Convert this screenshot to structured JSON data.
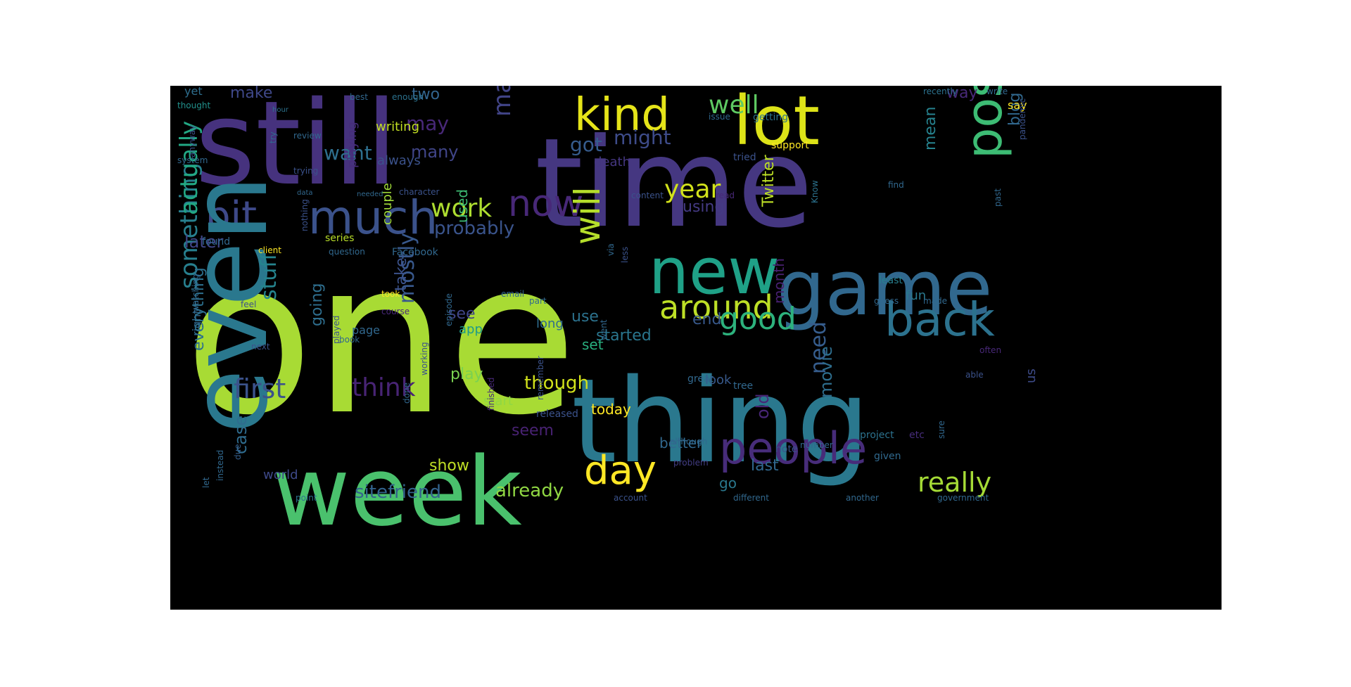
{
  "figure": {
    "background": "#000000",
    "words": [
      {
        "text": "one",
        "color": "#a8db34"
      },
      {
        "text": "still",
        "color": "#46327e"
      },
      {
        "text": "time",
        "color": "#453781"
      },
      {
        "text": "thing",
        "color": "#2a788e"
      },
      {
        "text": "week",
        "color": "#4ac16d"
      },
      {
        "text": "game",
        "color": "#31688e"
      },
      {
        "text": "new",
        "color": "#1fa187"
      },
      {
        "text": "lot",
        "color": "#dde318"
      },
      {
        "text": "kind",
        "color": "#e5e419"
      },
      {
        "text": "people",
        "color": "#472c7a"
      },
      {
        "text": "back",
        "color": "#2c728e"
      },
      {
        "text": "post",
        "color": "#3dbc74"
      },
      {
        "text": "much",
        "color": "#3b528b"
      },
      {
        "text": "bit",
        "color": "#3e4989"
      },
      {
        "text": "now",
        "color": "#482878"
      },
      {
        "text": "will",
        "color": "#b5de2b"
      },
      {
        "text": "day",
        "color": "#fde725"
      },
      {
        "text": "even",
        "color": "#2a788e"
      },
      {
        "text": "around",
        "color": "#bddf26"
      },
      {
        "text": "good",
        "color": "#2db27d"
      },
      {
        "text": "really",
        "color": "#a5db36"
      },
      {
        "text": "first",
        "color": "#3b528b"
      },
      {
        "text": "think",
        "color": "#482475"
      },
      {
        "text": "work",
        "color": "#addc30"
      },
      {
        "text": "year",
        "color": "#d2e21b"
      },
      {
        "text": "well",
        "color": "#5ec962"
      },
      {
        "text": "maybe",
        "color": "#414487"
      },
      {
        "text": "something",
        "color": "#277f8e"
      },
      {
        "text": "actually",
        "color": "#22a884"
      },
      {
        "text": "stuff",
        "color": "#25848e"
      },
      {
        "text": "mostly",
        "color": "#38588c"
      },
      {
        "text": "probably",
        "color": "#3a548c"
      },
      {
        "text": "sitefriend",
        "color": "#33638d"
      },
      {
        "text": "already",
        "color": "#90d743"
      },
      {
        "text": "need",
        "color": "#365d8d"
      },
      {
        "text": "might",
        "color": "#3e4c8a"
      },
      {
        "text": "got",
        "color": "#365c8d"
      },
      {
        "text": "want",
        "color": "#2e6f8e"
      },
      {
        "text": "may",
        "color": "#482878"
      },
      {
        "text": "many",
        "color": "#404588"
      },
      {
        "text": "two",
        "color": "#32648e"
      },
      {
        "text": "make",
        "color": "#3f4889"
      },
      {
        "text": "way",
        "color": "#482979"
      },
      {
        "text": "mean",
        "color": "#26828e"
      },
      {
        "text": "blog",
        "color": "#31688e"
      },
      {
        "text": "Twitter",
        "color": "#bddf26"
      },
      {
        "text": "using",
        "color": "#443a83"
      },
      {
        "text": "used",
        "color": "#3dbc74"
      },
      {
        "text": "later",
        "color": "#404688"
      },
      {
        "text": "though",
        "color": "#d2e21b"
      },
      {
        "text": "play",
        "color": "#7ad151"
      },
      {
        "text": "see",
        "color": "#404588"
      },
      {
        "text": "use",
        "color": "#2c728e"
      },
      {
        "text": "end",
        "color": "#38598c"
      },
      {
        "text": "old",
        "color": "#482677"
      },
      {
        "text": "movie",
        "color": "#2e6e8e"
      },
      {
        "text": "last",
        "color": "#31688e"
      },
      {
        "text": "case",
        "color": "#2f6c8e"
      },
      {
        "text": "world",
        "color": "#3e4989"
      },
      {
        "text": "show",
        "color": "#c0df25"
      },
      {
        "text": "take",
        "color": "#3b528b"
      },
      {
        "text": "going",
        "color": "#2e6e8e"
      },
      {
        "text": "seem",
        "color": "#482273"
      },
      {
        "text": "better",
        "color": "#31688e"
      },
      {
        "text": "started",
        "color": "#2a768e"
      },
      {
        "text": "go",
        "color": "#2a788e"
      },
      {
        "text": "set",
        "color": "#29af7f"
      },
      {
        "text": "today",
        "color": "#fde725"
      },
      {
        "text": "look",
        "color": "#38598c"
      },
      {
        "text": "start",
        "color": "#8fd744"
      },
      {
        "text": "couple",
        "color": "#a0da39"
      },
      {
        "text": "app",
        "color": "#1e9b8a"
      },
      {
        "text": "long",
        "color": "#2f6c8e"
      },
      {
        "text": "us",
        "color": "#3e4c8a"
      },
      {
        "text": "fun",
        "color": "#2a788e"
      },
      {
        "text": "month",
        "color": "#482071"
      },
      {
        "text": "death",
        "color": "#453781"
      },
      {
        "text": "always",
        "color": "#3b528b"
      },
      {
        "text": "playing",
        "color": "#472d7b"
      },
      {
        "text": "writing",
        "color": "#c2df23"
      },
      {
        "text": "yet",
        "color": "#2e6e8e"
      },
      {
        "text": "thought",
        "color": "#21918c"
      },
      {
        "text": "write",
        "color": "#31688e"
      },
      {
        "text": "say",
        "color": "#fde725"
      },
      {
        "text": "page",
        "color": "#31688e"
      },
      {
        "text": "Facebook",
        "color": "#31688e"
      },
      {
        "text": "series",
        "color": "#b8de29"
      },
      {
        "text": "least",
        "color": "#277f8e"
      },
      {
        "text": "able",
        "color": "#3b528b"
      },
      {
        "text": "often",
        "color": "#482878"
      },
      {
        "text": "right",
        "color": "#31688e"
      },
      {
        "text": "everything",
        "color": "#2d708e"
      },
      {
        "text": "etc",
        "color": "#472d7b"
      },
      {
        "text": "although",
        "color": "#30698e"
      },
      {
        "text": "problem",
        "color": "#433e85"
      },
      {
        "text": "project",
        "color": "#2c728e"
      },
      {
        "text": "note",
        "color": "#3b528b"
      },
      {
        "text": "given",
        "color": "#30698e"
      },
      {
        "text": "number",
        "color": "#31688e"
      },
      {
        "text": "due",
        "color": "#355f8d"
      },
      {
        "text": "point",
        "color": "#2c728e"
      },
      {
        "text": "instead",
        "color": "#31688e"
      },
      {
        "text": "different",
        "color": "#31688e"
      },
      {
        "text": "another",
        "color": "#31688e"
      },
      {
        "text": "government",
        "color": "#31688e"
      },
      {
        "text": "account",
        "color": "#3b528b"
      },
      {
        "text": "tried",
        "color": "#3b528b"
      },
      {
        "text": "read",
        "color": "#482878"
      },
      {
        "text": "support",
        "color": "#fde725"
      },
      {
        "text": "getting",
        "color": "#2c728e"
      },
      {
        "text": "issue",
        "color": "#31688e"
      },
      {
        "text": "review",
        "color": "#31688e"
      },
      {
        "text": "hour",
        "color": "#2c728e"
      },
      {
        "text": "needed",
        "color": "#31688e"
      },
      {
        "text": "found",
        "color": "#31688e"
      },
      {
        "text": "client",
        "color": "#fde725"
      },
      {
        "text": "question",
        "color": "#31688e"
      },
      {
        "text": "content",
        "color": "#3b528b"
      },
      {
        "text": "character",
        "color": "#3b528b"
      },
      {
        "text": "trying",
        "color": "#3b528b"
      },
      {
        "text": "try",
        "color": "#31688e"
      },
      {
        "text": "find",
        "color": "#31688e"
      },
      {
        "text": "Know",
        "color": "#2c728e"
      },
      {
        "text": "past",
        "color": "#31688e"
      },
      {
        "text": "recently",
        "color": "#2c728e"
      },
      {
        "text": "pandemic",
        "color": "#3b528b"
      },
      {
        "text": "best",
        "color": "#31688e"
      },
      {
        "text": "enough",
        "color": "#2c728e"
      },
      {
        "text": "data",
        "color": "#31688e"
      },
      {
        "text": "course",
        "color": "#482878"
      },
      {
        "text": "book",
        "color": "#31688e"
      },
      {
        "text": "feel",
        "color": "#3b528b"
      },
      {
        "text": "tree",
        "color": "#31688e"
      },
      {
        "text": "part",
        "color": "#31688e"
      },
      {
        "text": "next",
        "color": "#3b528b"
      },
      {
        "text": "sure",
        "color": "#31688e"
      },
      {
        "text": "via",
        "color": "#31688e"
      },
      {
        "text": "less",
        "color": "#3b528b"
      },
      {
        "text": "great",
        "color": "#31688e"
      },
      {
        "text": "watching",
        "color": "#31688e"
      },
      {
        "text": "nothing",
        "color": "#3b528b"
      },
      {
        "text": "done",
        "color": "#31688e"
      },
      {
        "text": "working",
        "color": "#3b528b"
      },
      {
        "text": "remember",
        "color": "#3b528b"
      },
      {
        "text": "released",
        "color": "#3b528b"
      },
      {
        "text": "finished",
        "color": "#482878"
      },
      {
        "text": "episode",
        "color": "#31688e"
      },
      {
        "text": "took",
        "color": "#fde725"
      },
      {
        "text": "played",
        "color": "#3b528b"
      },
      {
        "text": "went",
        "color": "#31688e"
      },
      {
        "text": "email",
        "color": "#31688e"
      },
      {
        "text": "system",
        "color": "#31688e"
      },
      {
        "text": "anyway",
        "color": "#3b528b"
      },
      {
        "text": "let",
        "color": "#31688e"
      },
      {
        "text": "guess",
        "color": "#31688e"
      },
      {
        "text": "made",
        "color": "#31688e"
      }
    ]
  }
}
